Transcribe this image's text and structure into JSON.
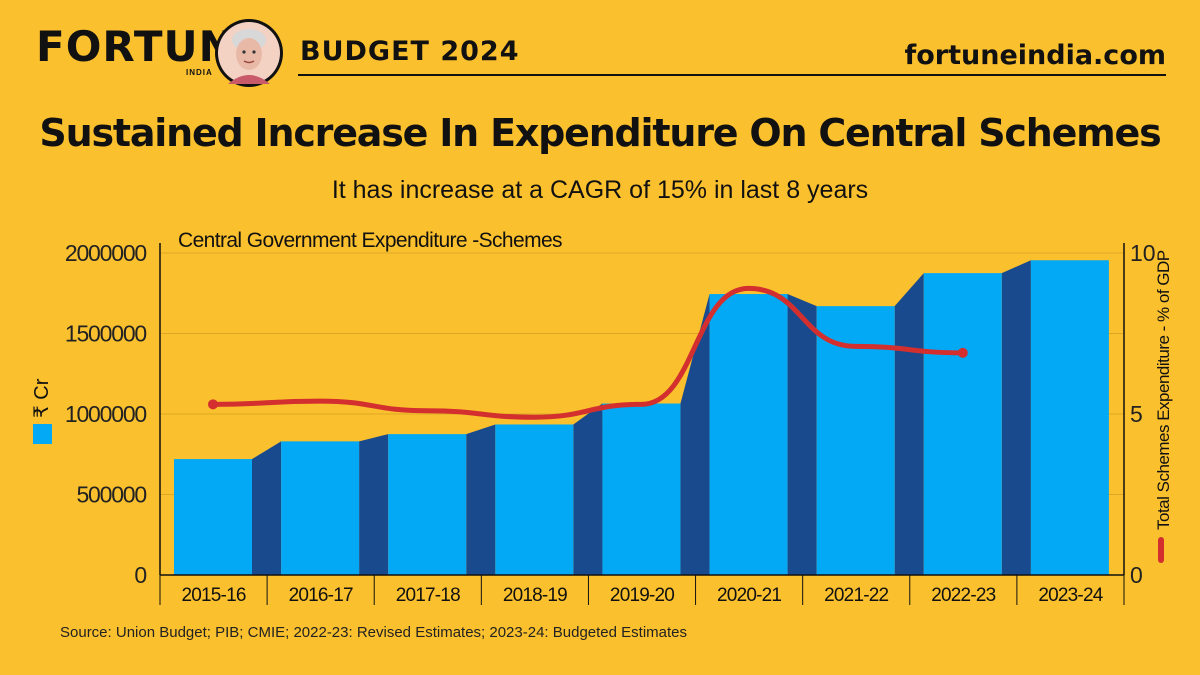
{
  "header": {
    "brand": "FORTUNE",
    "brand_sub": "INDIA",
    "edition": "BUDGET 2024",
    "site": "fortuneindia.com",
    "portrait_icon": "portrait-icon"
  },
  "title": "Sustained Increase In Expenditure On Central Schemes",
  "subtitle": "It has increase at a CAGR of 15% in last 8 years",
  "source": "Source: Union Budget; PIB; CMIE; 2022-23: Revised Estimates; 2023-24: Budgeted Estimates",
  "colors": {
    "background": "#FBC02D",
    "bar_front": "#03A9F4",
    "bar_side": "#1A4A8E",
    "line": "#D32F2F"
  },
  "chart_data": {
    "type": "bar",
    "title": "Central Government Expenditure -Schemes",
    "categories": [
      "2015-16",
      "2016-17",
      "2017-18",
      "2018-19",
      "2019-20",
      "2020-21",
      "2021-22",
      "2022-23",
      "2023-24"
    ],
    "series": [
      {
        "name": "₹ Cr",
        "type": "bar",
        "axis": "left",
        "values": [
          720000,
          830000,
          875000,
          935000,
          1065000,
          1745000,
          1670000,
          1875000,
          1955000
        ]
      },
      {
        "name": "Total Schemes Expenditure - % of GDP",
        "type": "line",
        "axis": "right",
        "values": [
          5.3,
          5.4,
          5.1,
          4.9,
          5.3,
          8.9,
          7.1,
          6.9,
          null
        ]
      }
    ],
    "ylabel_left": "₹ Cr",
    "ylabel_right": "Total Schemes Expenditure - % of GDP",
    "ylim_left": [
      0,
      2000000
    ],
    "ylim_right": [
      0,
      10
    ],
    "yticks_left": [
      "0",
      "500000",
      "1000000",
      "1500000",
      "2000000"
    ],
    "yticks_right": [
      "0",
      "5",
      "10"
    ],
    "grid": true
  }
}
